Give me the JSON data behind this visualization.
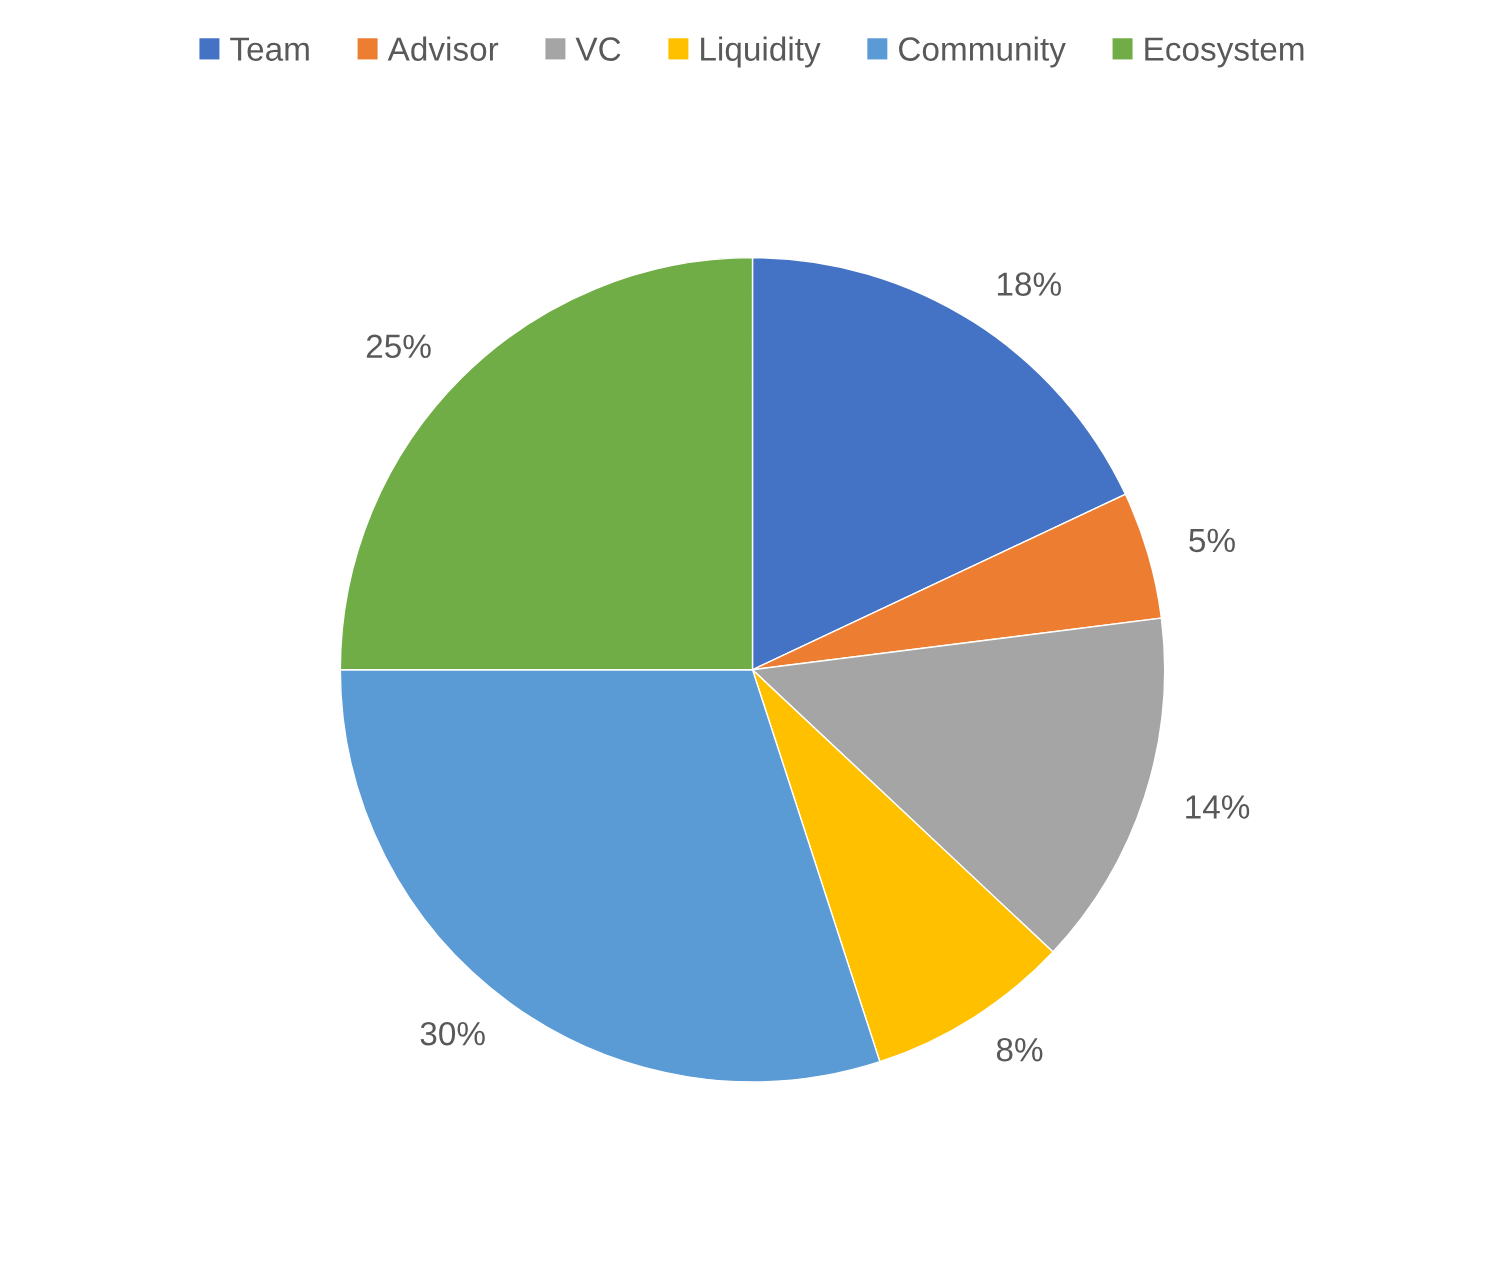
{
  "chart_data": {
    "type": "pie",
    "categories": [
      "Team",
      "Advisor",
      "VC",
      "Liquidity",
      "Community",
      "Ecosystem"
    ],
    "values": [
      18,
      5,
      14,
      8,
      30,
      25
    ],
    "value_labels": [
      "18%",
      "5%",
      "14%",
      "8%",
      "30%",
      "25%"
    ],
    "colors": [
      "#4472c4",
      "#ed7d31",
      "#a5a5a5",
      "#ffc000",
      "#5b9bd5",
      "#70ad47"
    ],
    "legend": "top"
  }
}
